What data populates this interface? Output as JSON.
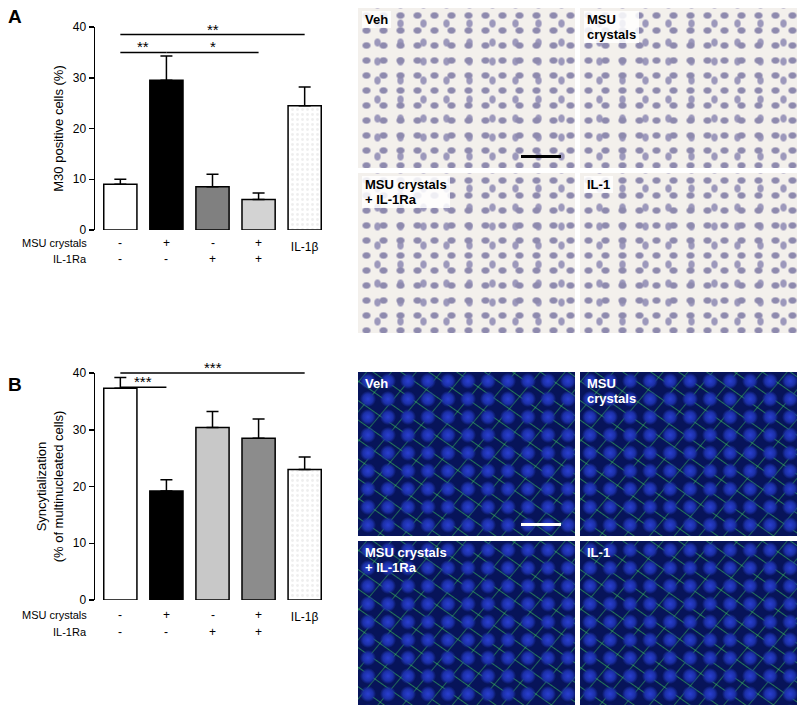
{
  "chart_data": [
    {
      "type": "bar",
      "panel": "A",
      "y_label": [
        "M30 positive cells (%)"
      ],
      "categories": [
        null,
        null,
        null,
        null,
        "IL-1β"
      ],
      "values": [
        9,
        29.5,
        8.5,
        6,
        24.5
      ],
      "errors": [
        1,
        4.8,
        2.5,
        1.3,
        3.7
      ],
      "colors": [
        "#ffffff",
        "#000000",
        "#808080",
        "#d3d3d3",
        "#eeeeee"
      ],
      "ylim": [
        0,
        40
      ],
      "yticks": [
        0,
        10,
        20,
        30,
        40
      ],
      "grid": false,
      "condition_rows": [
        {
          "label": "MSU crystals",
          "marks": [
            "-",
            "+",
            "-",
            "+",
            null
          ]
        },
        {
          "label": "IL-1Ra",
          "marks": [
            "-",
            "-",
            "+",
            "+",
            null
          ]
        }
      ],
      "significance": [
        {
          "from": 0,
          "to": 4,
          "y": 38.5,
          "label": "**"
        },
        {
          "from": 0,
          "to": 1,
          "y": 35,
          "label": "**"
        },
        {
          "from": 1,
          "to": 3,
          "y": 35,
          "label": "*"
        }
      ]
    },
    {
      "type": "bar",
      "panel": "B",
      "y_label": [
        "Syncytialization",
        "(% of multinucleated cells)"
      ],
      "categories": [
        null,
        null,
        null,
        null,
        "IL-1β"
      ],
      "values": [
        37.3,
        19.2,
        30.4,
        28.5,
        23
      ],
      "errors": [
        1.9,
        2,
        2.8,
        3.4,
        2.2
      ],
      "colors": [
        "#ffffff",
        "#000000",
        "#c8c8c8",
        "#8c8c8c",
        "#eeeeee"
      ],
      "ylim": [
        0,
        40
      ],
      "yticks": [
        0,
        10,
        20,
        30,
        40
      ],
      "grid": false,
      "condition_rows": [
        {
          "label": "MSU crystals",
          "marks": [
            "-",
            "+",
            "-",
            "+",
            null
          ]
        },
        {
          "label": "IL-1Ra",
          "marks": [
            "-",
            "-",
            "+",
            "+",
            null
          ]
        }
      ],
      "significance": [
        {
          "from": 0,
          "to": 4,
          "y": 40,
          "label": "***"
        },
        {
          "from": 0,
          "to": 1,
          "y": 37.5,
          "label": "***"
        }
      ]
    }
  ],
  "images": [
    {
      "panel": "A",
      "labels": [
        "Veh",
        "MSU\ncrystals",
        "MSU crystals\n+ IL-1Ra",
        "IL-1"
      ]
    },
    {
      "panel": "B",
      "labels": [
        "Veh",
        "MSU\ncrystals",
        "MSU crystals\n+ IL-1Ra",
        "IL-1"
      ]
    }
  ]
}
